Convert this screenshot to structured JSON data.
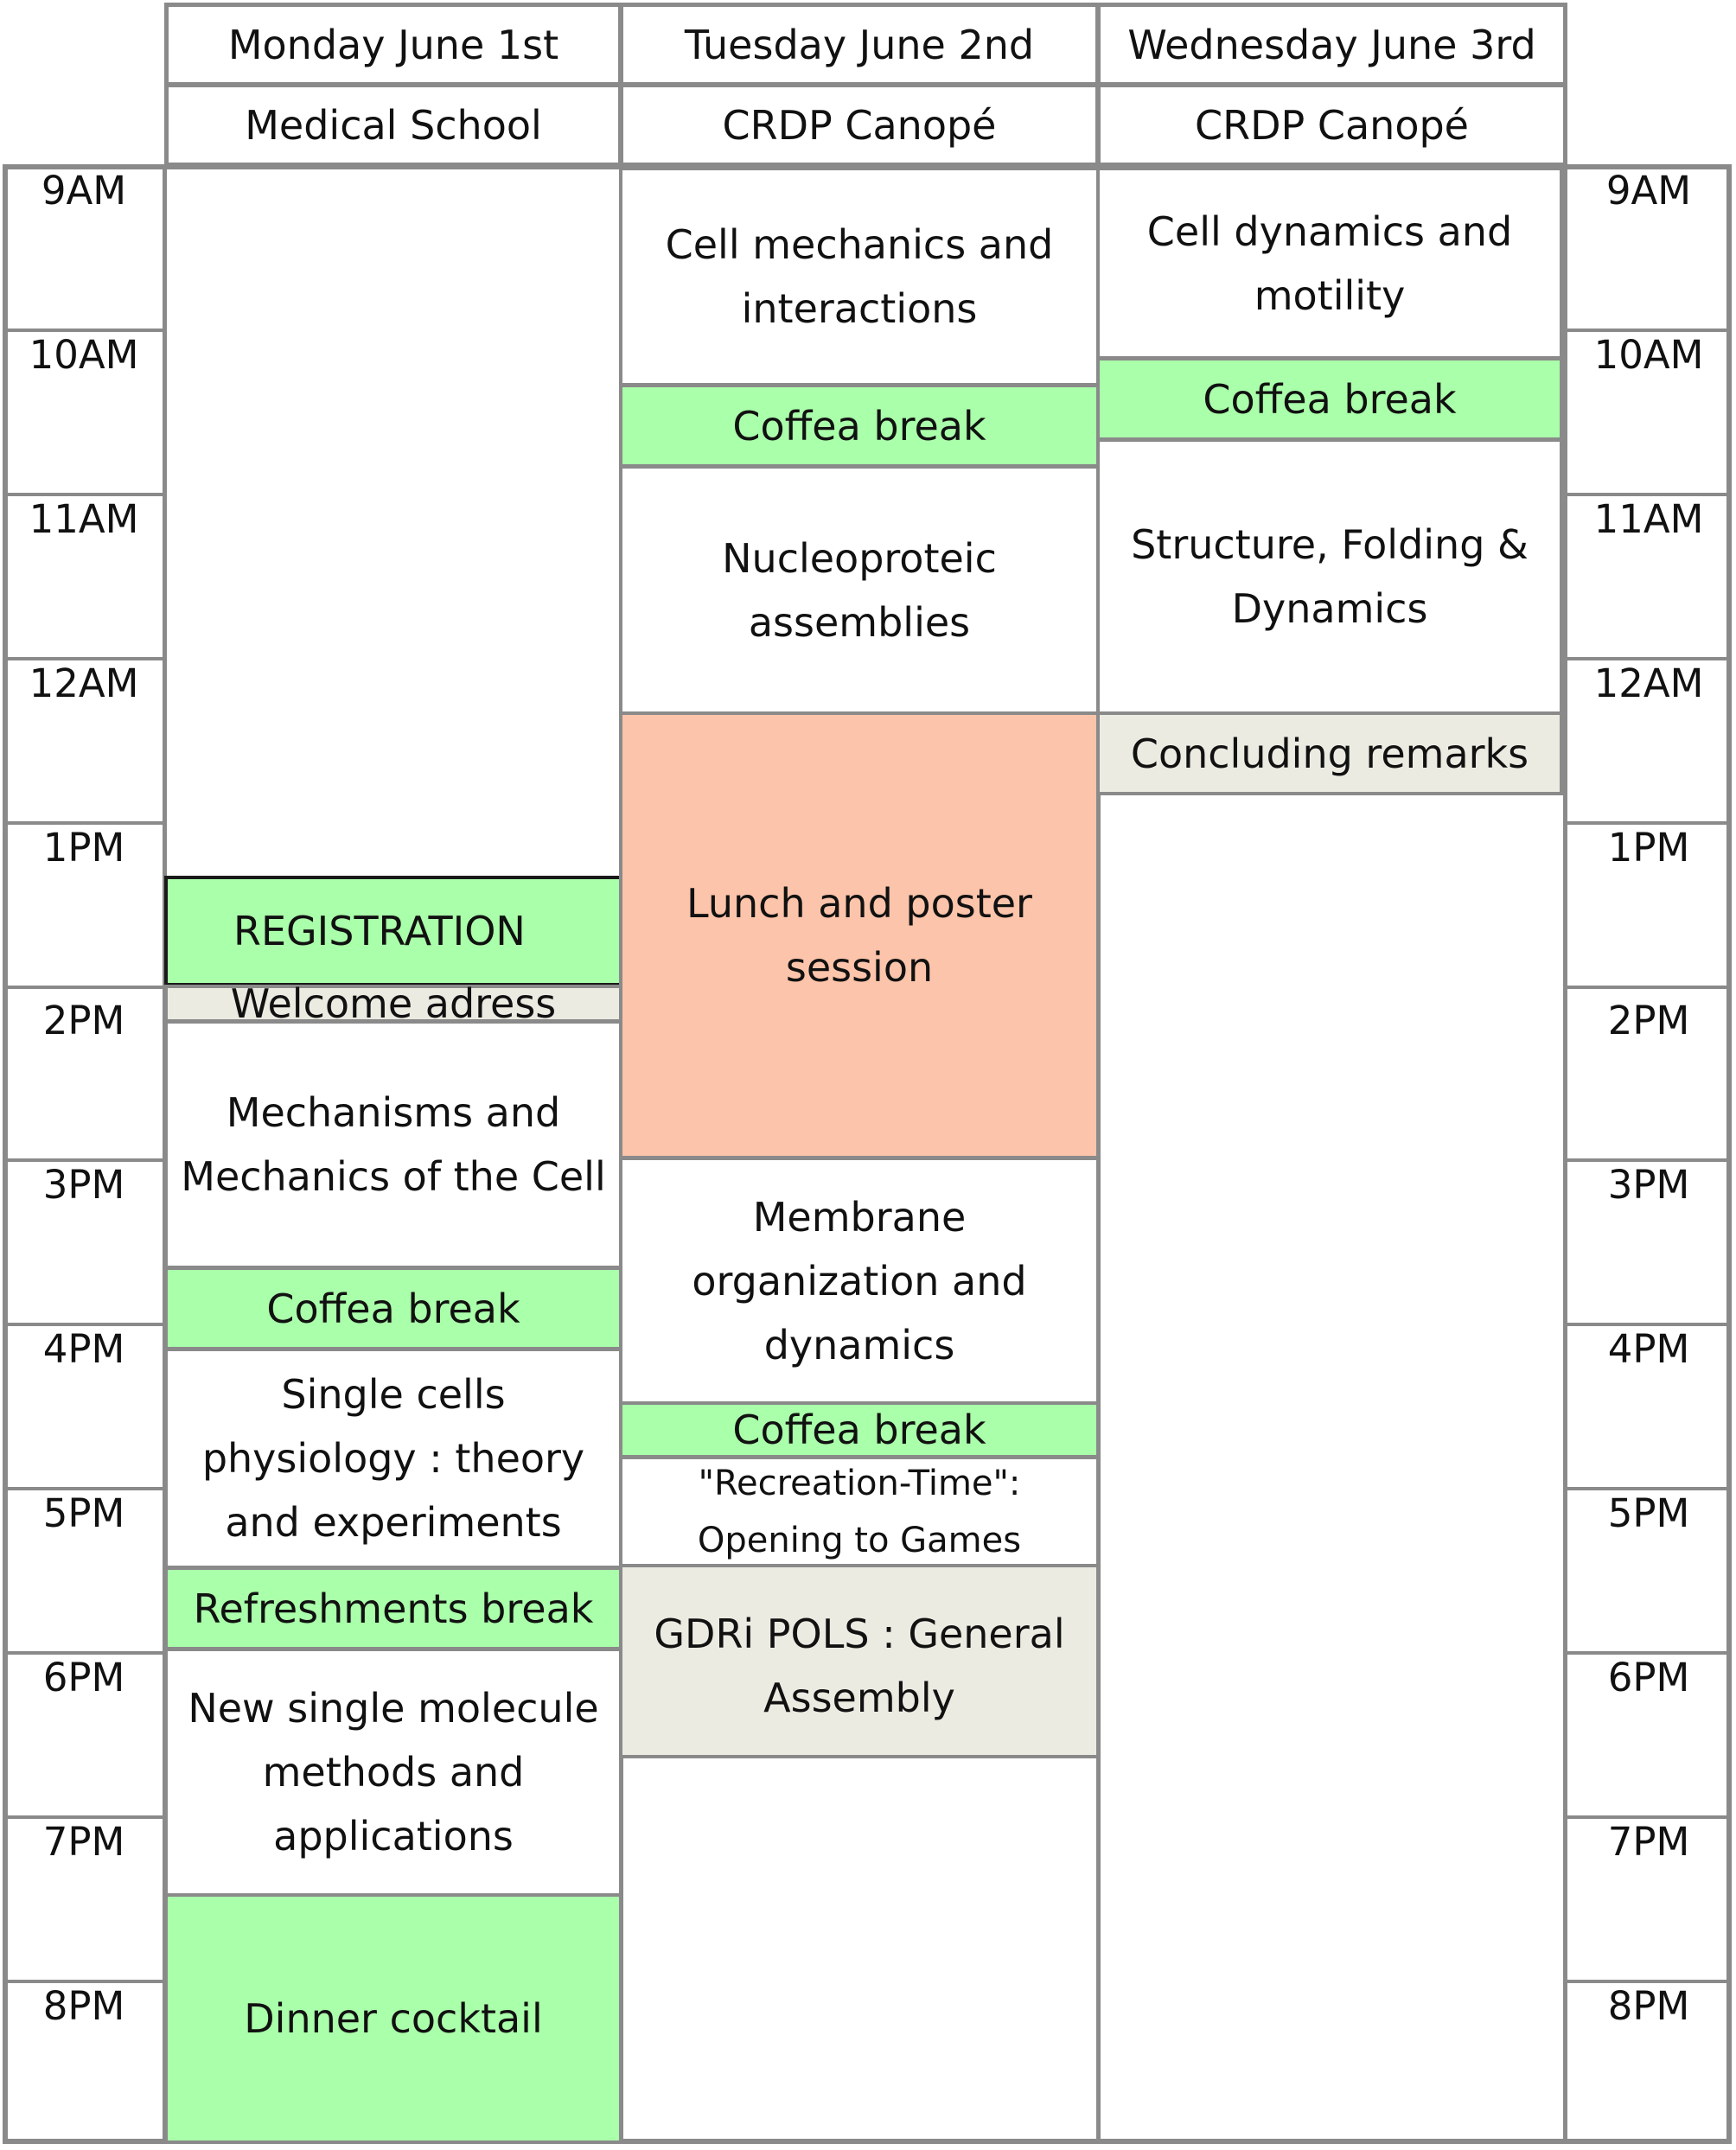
{
  "days": [
    {
      "date": "Monday June 1st",
      "venue": "Medical School"
    },
    {
      "date": "Tuesday June 2nd",
      "venue": "CRDP Canopé"
    },
    {
      "date": "Wednesday June 3rd",
      "venue": "CRDP Canopé"
    }
  ],
  "times": [
    "9AM",
    "10AM",
    "11AM",
    "12AM",
    "1PM",
    "2PM",
    "3PM",
    "4PM",
    "5PM",
    "6PM",
    "7PM",
    "8PM"
  ],
  "monday": {
    "registration": "REGISTRATION",
    "welcome": "Welcome adress",
    "mechanisms": "Mechanisms and Mechanics of the Cell",
    "coffee": "Coffea break",
    "single_cells": "Single cells physiology : theory and experiments",
    "refreshments": "Refreshments break",
    "single_molecule": "New single molecule methods and applications",
    "dinner": "Dinner cocktail"
  },
  "tuesday": {
    "cell_mechanics": "Cell mechanics and interactions",
    "coffee1": "Coffea break",
    "nucleoproteic": "Nucleoproteic assemblies",
    "lunch": "Lunch and poster session",
    "membrane": "Membrane organization and dynamics",
    "coffee2": "Coffea break",
    "recreation": "\"Recreation-Time\": Opening to Games",
    "gdri": "GDRi POLS : General Assembly"
  },
  "wednesday": {
    "cell_dynamics": "Cell dynamics and motility",
    "coffee": "Coffea break",
    "structure": "Structure, Folding & Dynamics",
    "concluding": "Concluding remarks"
  },
  "colors": {
    "break": "#aaffaa",
    "plenary": "#ecebe2",
    "lunch": "#fcc4aa",
    "grid": "#8a8a8a"
  }
}
